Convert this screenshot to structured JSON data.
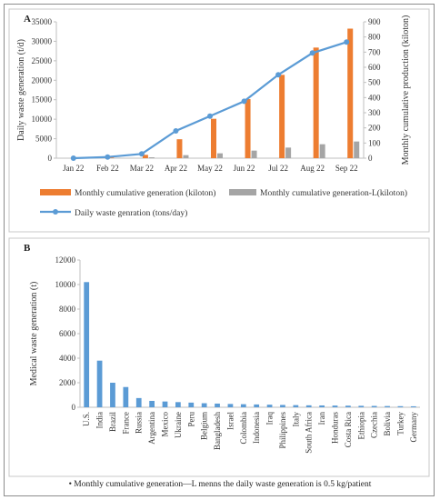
{
  "chart_data": [
    {
      "panel": "A",
      "type": "bar+line",
      "categories": [
        "Jan 22",
        "Feb 22",
        "Mar 22",
        "Apr 22",
        "May 22",
        "Jun 22",
        "Jul 22",
        "Aug 22",
        "Sep 22"
      ],
      "ylabel": "Daily waste generation (t/d)",
      "y2label": "Monthly cumulative production (kiloton)",
      "ylim": [
        0,
        35000
      ],
      "yticks": [
        0,
        5000,
        10000,
        15000,
        20000,
        25000,
        30000,
        35000
      ],
      "y2lim": [
        0,
        900
      ],
      "y2ticks": [
        0,
        100,
        200,
        300,
        400,
        500,
        600,
        700,
        800,
        900
      ],
      "series": [
        {
          "name": "Monthly cumulative generation (kiloton)",
          "type": "bar",
          "axis": "right",
          "color": "#ed7d31",
          "values": [
            2,
            5,
            22,
            125,
            260,
            390,
            550,
            730,
            855
          ]
        },
        {
          "name": "Monthly cumulative generation-L(kiloton)",
          "type": "bar",
          "axis": "right",
          "color": "#a5a5a5",
          "values": [
            1,
            2,
            6,
            20,
            32,
            50,
            70,
            92,
            110
          ]
        },
        {
          "name": "Daily waste genration (tons/day)",
          "type": "line",
          "axis": "left",
          "color": "#5b9bd5",
          "values": [
            0,
            300,
            1100,
            7000,
            10800,
            14600,
            21400,
            27000,
            29800
          ]
        }
      ],
      "legend": "bottom"
    },
    {
      "panel": "B",
      "type": "bar",
      "ylabel": "Medical waste generation (t)",
      "ylim": [
        0,
        12000
      ],
      "yticks": [
        0,
        2000,
        4000,
        6000,
        8000,
        10000,
        12000
      ],
      "color": "#5b9bd5",
      "categories": [
        "U.S.",
        "India",
        "Brazil",
        "France",
        "Russia",
        "Argentina",
        "Mexico",
        "Ukraine",
        "Peru",
        "Belgium",
        "Bangladesh",
        "Israel",
        "Colombia",
        "Indonesia",
        "Iraq",
        "Philippines",
        "Italy",
        "South Africa",
        "Iran",
        "Honduras",
        "Costa Rica",
        "Ethiopia",
        "Czechia",
        "Bolivia",
        "Turkey",
        "Germany"
      ],
      "values": [
        10200,
        3800,
        2000,
        1650,
        750,
        520,
        470,
        420,
        380,
        330,
        300,
        270,
        250,
        230,
        210,
        190,
        175,
        160,
        150,
        140,
        130,
        120,
        110,
        100,
        90,
        80
      ]
    }
  ],
  "footnote": "• Monthly cumulative generation—L menns the daily waste generation is 0.5 kg/patient"
}
